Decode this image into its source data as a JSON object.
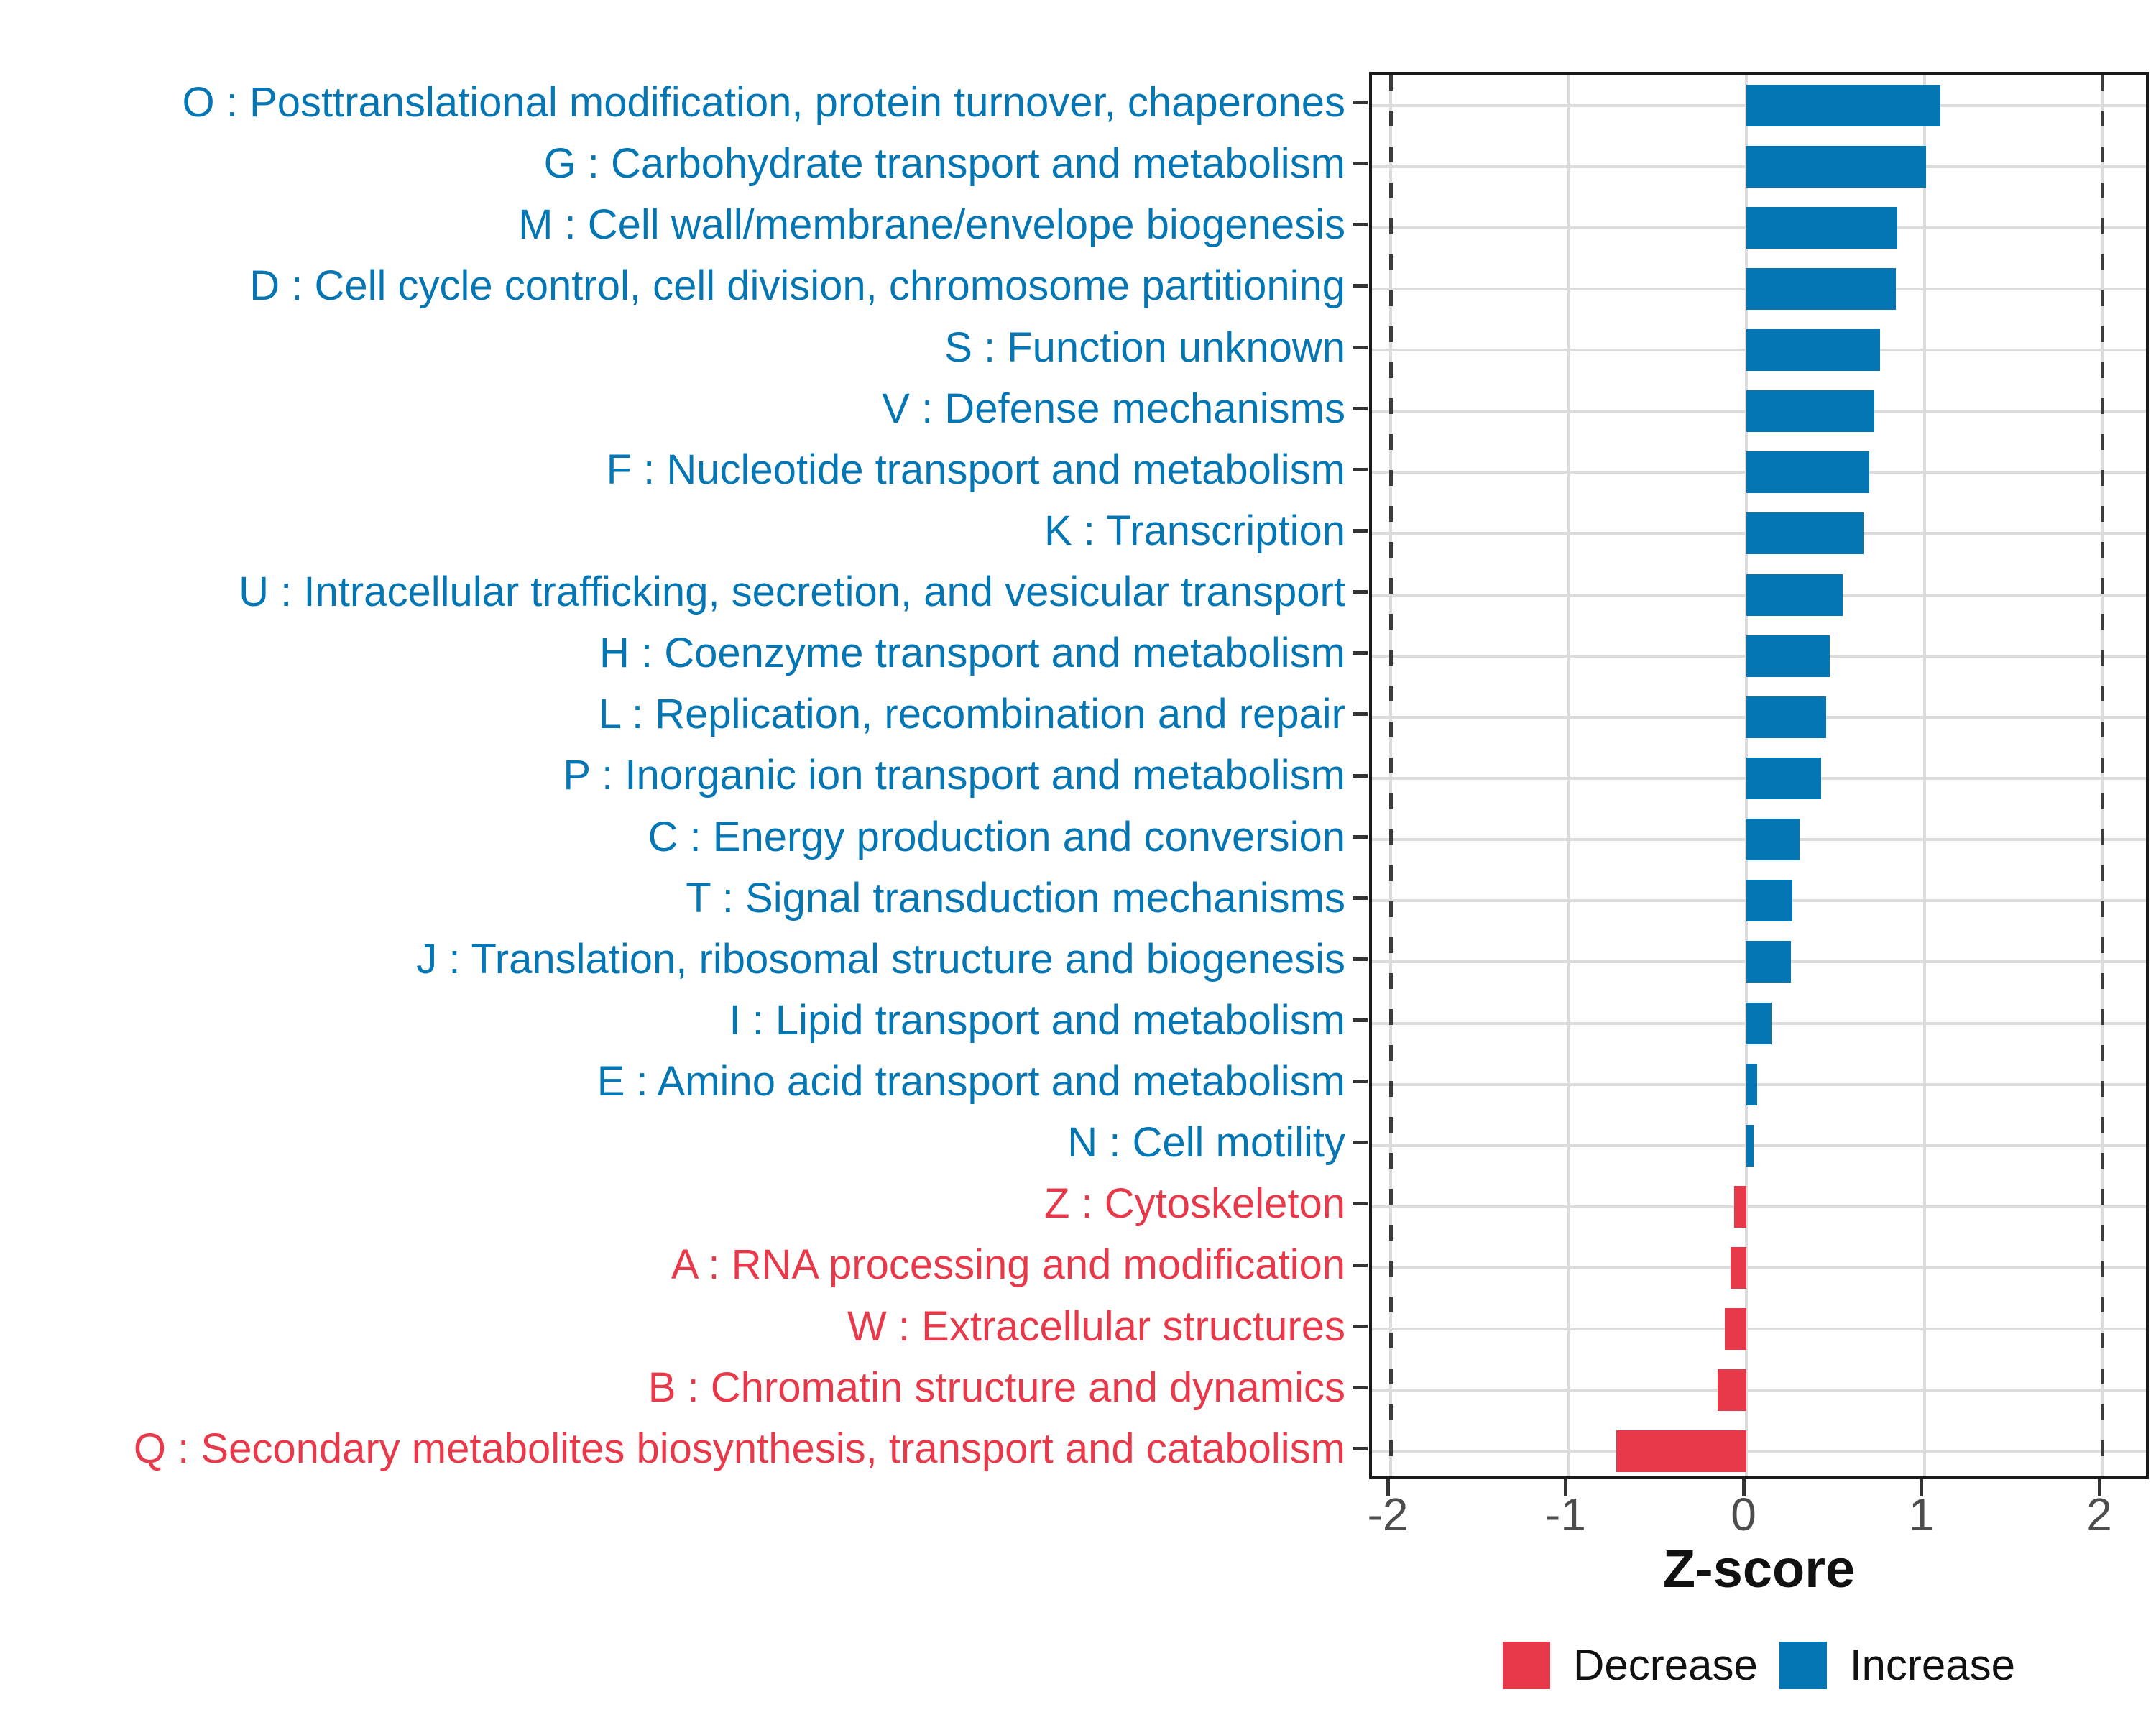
{
  "chart_data": {
    "type": "bar",
    "orientation": "horizontal",
    "title": "",
    "xlabel": "Z-score",
    "ylabel": "",
    "xlim": [
      -2.11,
      2.28
    ],
    "x_tick_labels": [
      "-2",
      "-1",
      "0",
      "1",
      "2"
    ],
    "x_tick_values": [
      -2,
      -1,
      0,
      1,
      2
    ],
    "reference_lines": [
      -2,
      2
    ],
    "grid": "on",
    "categories": [
      "O : Posttranslational modification, protein turnover, chaperones",
      "G : Carbohydrate transport and metabolism",
      "M : Cell wall/membrane/envelope biogenesis",
      "D : Cell cycle control, cell division, chromosome partitioning",
      "S : Function unknown",
      "V : Defense mechanisms",
      "F : Nucleotide transport and metabolism",
      "K : Transcription",
      "U : Intracellular trafficking, secretion, and vesicular transport",
      "H : Coenzyme transport and metabolism",
      "L : Replication, recombination and repair",
      "P : Inorganic ion transport and metabolism",
      "C : Energy production and conversion",
      "T : Signal transduction mechanisms",
      "J : Translation, ribosomal structure and biogenesis",
      "I : Lipid transport and metabolism",
      "E : Amino acid transport and metabolism",
      "N : Cell motility",
      "Z : Cytoskeleton",
      "A : RNA processing and modification",
      "W : Extracellular structures",
      "B : Chromatin structure and dynamics",
      "Q : Secondary metabolites biosynthesis, transport and catabolism"
    ],
    "values": [
      1.09,
      1.01,
      0.85,
      0.84,
      0.75,
      0.72,
      0.69,
      0.66,
      0.54,
      0.47,
      0.45,
      0.42,
      0.3,
      0.26,
      0.25,
      0.14,
      0.06,
      0.04,
      -0.07,
      -0.09,
      -0.12,
      -0.16,
      -0.73
    ],
    "groups": [
      "increase",
      "increase",
      "increase",
      "increase",
      "increase",
      "increase",
      "increase",
      "increase",
      "increase",
      "increase",
      "increase",
      "increase",
      "increase",
      "increase",
      "increase",
      "increase",
      "increase",
      "increase",
      "decrease",
      "decrease",
      "decrease",
      "decrease",
      "decrease"
    ],
    "colors": {
      "increase": "#0576B4",
      "decrease": "#E8394A",
      "gridline": "#DCDCDC",
      "reference_dash": "#3C3C3C",
      "axis_text": "#4D4D4D",
      "panel_border": "#1A1A1A"
    },
    "legend": {
      "position": "bottom-right",
      "items": [
        {
          "label": "Decrease",
          "group": "decrease"
        },
        {
          "label": "Increase",
          "group": "increase"
        }
      ]
    }
  }
}
